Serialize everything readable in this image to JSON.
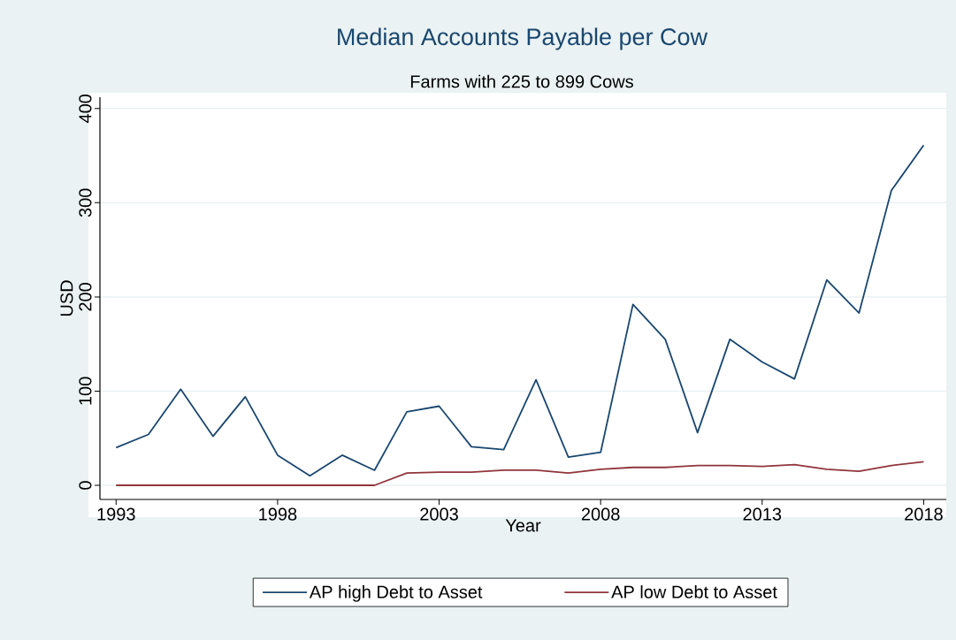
{
  "chart_data": {
    "type": "line",
    "title": "Median Accounts Payable per Cow",
    "subtitle": "Farms with 225 to 899 Cows",
    "xlabel": "Year",
    "ylabel": "USD",
    "x": [
      1993,
      1994,
      1995,
      1996,
      1997,
      1998,
      1999,
      2000,
      2001,
      2002,
      2003,
      2004,
      2005,
      2006,
      2007,
      2008,
      2009,
      2010,
      2011,
      2012,
      2013,
      2014,
      2015,
      2016,
      2017,
      2018
    ],
    "series": [
      {
        "name": "AP high Debt to Asset",
        "color": "#1a476f",
        "values": [
          40,
          54,
          102,
          52,
          94,
          32,
          10,
          32,
          16,
          78,
          84,
          41,
          38,
          112,
          30,
          35,
          192,
          155,
          56,
          155,
          131,
          113,
          218,
          183,
          313,
          361
        ]
      },
      {
        "name": "AP low Debt to Asset",
        "color": "#90353b",
        "values": [
          0,
          0,
          0,
          0,
          0,
          0,
          0,
          0,
          0,
          13,
          14,
          14,
          16,
          16,
          13,
          17,
          19,
          19,
          21,
          21,
          20,
          22,
          17,
          15,
          21,
          25
        ]
      }
    ],
    "xlim": [
      1992.5,
      2018.7
    ],
    "ylim": [
      -15,
      412
    ],
    "xticks": [
      1993,
      1998,
      2003,
      2008,
      2013,
      2018
    ],
    "yticks": [
      0,
      100,
      200,
      300,
      400
    ],
    "grid": "y",
    "legend": "bottom",
    "line_style": "solid"
  }
}
